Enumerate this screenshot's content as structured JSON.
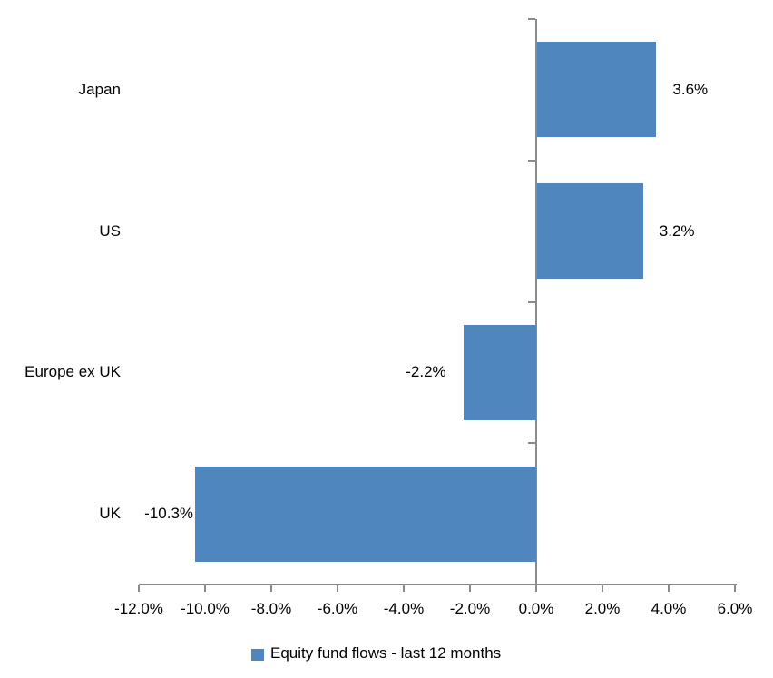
{
  "chart_data": {
    "type": "bar",
    "orientation": "horizontal",
    "title": "",
    "categories": [
      "Japan",
      "US",
      "Europe ex UK",
      "UK"
    ],
    "series": [
      {
        "name": "Equity fund flows - last 12 months",
        "values": [
          3.6,
          3.2,
          -2.2,
          -10.3
        ],
        "value_labels": [
          "3.6%",
          "3.2%",
          "-2.2%",
          "-10.3%"
        ]
      }
    ],
    "xlabel": "",
    "ylabel": "",
    "xlim": [
      -12,
      6
    ],
    "x_ticks": [
      -12,
      -10,
      -8,
      -6,
      -4,
      -2,
      0,
      2,
      4,
      6
    ],
    "x_tick_labels": [
      "-12.0%",
      "-10.0%",
      "-8.0%",
      "-6.0%",
      "-4.0%",
      "-2.0%",
      "0.0%",
      "2.0%",
      "4.0%",
      "6.0%"
    ],
    "grid": false,
    "data_label_position": "outside-end",
    "legend_position": "bottom-center",
    "legend": [
      {
        "label": "Equity fund flows - last 12 months",
        "color": "#4E86BD"
      }
    ],
    "bar_color": "#4E86BD",
    "axis_color": "#8A8A8A",
    "text_color": "#000000",
    "background_color": "#FFFFFF"
  }
}
